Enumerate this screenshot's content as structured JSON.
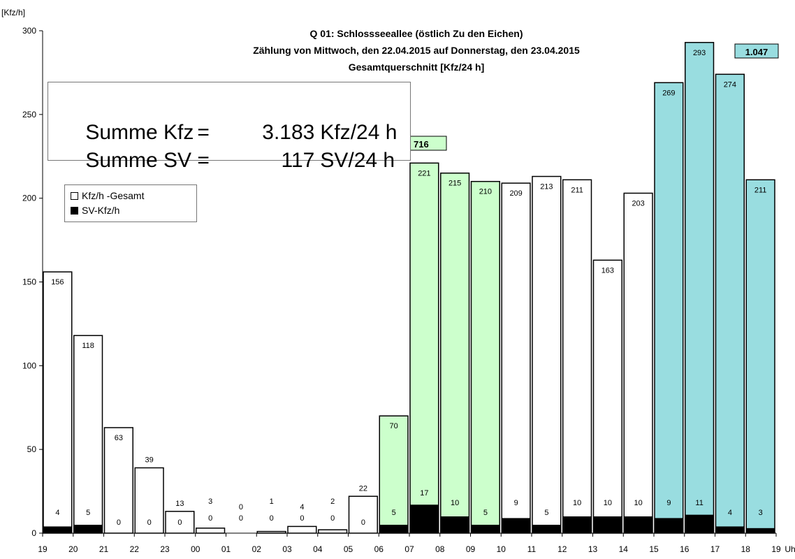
{
  "chart_data": {
    "type": "bar",
    "title_lines": [
      "Q 01: Schlossseeallee (östlich Zu den Eichen)",
      "Zählung von Mittwoch, den 22.04.2015 auf Donnerstag, den 23.04.2015",
      "Gesamtquerschnitt [Kfz/24 h]"
    ],
    "ylabel": "[Kfz/h]",
    "xunit": "Uhr",
    "ylim": [
      0,
      300
    ],
    "yticks": [
      0,
      50,
      100,
      150,
      200,
      250,
      300
    ],
    "xticks": [
      "19",
      "20",
      "21",
      "22",
      "23",
      "00",
      "01",
      "02",
      "03",
      "04",
      "05",
      "06",
      "07",
      "08",
      "09",
      "10",
      "11",
      "12",
      "13",
      "14",
      "15",
      "16",
      "17",
      "18",
      "19"
    ],
    "series": [
      {
        "name": "Kfz/h -Gesamt",
        "values": [
          156,
          118,
          63,
          39,
          13,
          3,
          0,
          1,
          4,
          2,
          22,
          70,
          221,
          215,
          210,
          209,
          213,
          211,
          163,
          203,
          269,
          293,
          274,
          211
        ]
      },
      {
        "name": "SV-Kfz/h",
        "values": [
          4,
          5,
          0,
          0,
          0,
          0,
          0,
          0,
          0,
          0,
          0,
          5,
          17,
          10,
          5,
          9,
          5,
          10,
          10,
          10,
          9,
          11,
          4,
          3
        ]
      }
    ],
    "bar_highlights": [
      "white",
      "white",
      "white",
      "white",
      "white",
      "white",
      "white",
      "white",
      "white",
      "white",
      "white",
      "green",
      "green",
      "green",
      "green",
      "white",
      "white",
      "white",
      "white",
      "white",
      "cyan",
      "cyan",
      "cyan",
      "cyan"
    ],
    "colors": {
      "white": "#ffffff",
      "green": "#ccffcc",
      "cyan": "#99dde0",
      "sv": "#000000"
    },
    "peak_labels": [
      {
        "value": "716",
        "period": "morning"
      },
      {
        "value": "1.047",
        "period": "afternoon"
      }
    ]
  },
  "summary": {
    "kfz": {
      "label": "Summe Kfz",
      "eq": "=",
      "value": "3.183",
      "unit": "Kfz/24 h"
    },
    "sv": {
      "label": "Summe SV",
      "eq": "=",
      "value": "117",
      "unit": "SV/24 h"
    }
  },
  "legend": {
    "total_label": "Kfz/h -Gesamt",
    "sv_label": "SV-Kfz/h"
  }
}
